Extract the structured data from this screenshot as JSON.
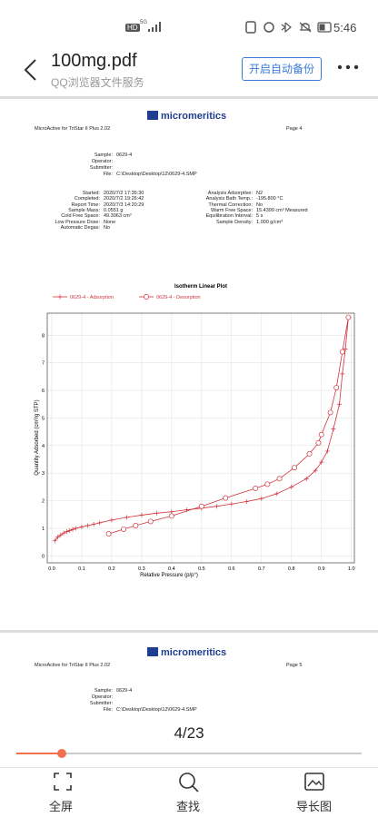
{
  "status_bar": {
    "network": "HD",
    "signal": "5G",
    "time": "5:46"
  },
  "header": {
    "title": "100mg.pdf",
    "subtitle": "QQ浏览器文件服务",
    "backup_button": "开启自动备份"
  },
  "page_1": {
    "software": "MicroActive for TriStar II Plus 2.02",
    "logo": "micromeritics",
    "page": "Page 4",
    "sample_rows": [
      {
        "label": "Sample:",
        "value": "0629-4"
      },
      {
        "label": "Operator:"
      },
      {
        "label": "Submitter:"
      },
      {
        "label": "File:",
        "value": "C:\\Desktop\\Desktop\\12\\0629-4.SMP"
      }
    ],
    "left_rows": [
      {
        "label": "Started:",
        "value": "2020/7/2 17:35:30"
      },
      {
        "label": "Completed:",
        "value": "2020/7/2 19:26:42"
      },
      {
        "label": "Report Time:",
        "value": "2020/7/3 14:20:29"
      },
      {
        "label": "Sample Mass:",
        "value": "0.0551 g"
      },
      {
        "label": "Cold Free Space:",
        "value": "49.3063 cm³"
      },
      {
        "label": "Low Pressure Dose:",
        "value": "None"
      },
      {
        "label": "Automatic Degas:",
        "value": "No"
      }
    ],
    "right_rows": [
      {
        "label": "Analysis Adsorptive:",
        "value": "N2"
      },
      {
        "label": "Analysis Bath Temp.:",
        "value": "-195.800 °C"
      },
      {
        "label": "Thermal Correction:",
        "value": "No"
      },
      {
        "label": "Warm Free Space:",
        "value": "15.4399 cm³ Measured"
      },
      {
        "label": "Equilibration Interval:",
        "value": "5 s"
      },
      {
        "label": "Sample Density:",
        "value": "1.000 g/cm³"
      }
    ]
  },
  "chart_data": {
    "type": "line",
    "title": "Isotherm Linear Plot",
    "x_label": "Relative Pressure (p/p°)",
    "y_label": "Quantity Adsorbed (cm³/g STP)",
    "xlim": [
      -0.015,
      1.01
    ],
    "ylim": [
      -0.25,
      8.8
    ],
    "xticks": [
      {
        "value": 0,
        "label": "0.0"
      },
      0.1,
      0.2,
      0.3,
      0.4,
      0.5,
      0.6,
      0.7,
      0.8,
      0.9,
      {
        "value": 1,
        "label": "1.0"
      }
    ],
    "yticks": [
      0,
      1,
      2,
      3,
      4,
      5,
      6,
      7,
      8
    ],
    "grid": true,
    "series": [
      {
        "name": "0629-4 - Adsorption",
        "color": "#d0343c",
        "marker": "plus",
        "x": [
          0.01,
          0.02,
          0.03,
          0.04,
          0.05,
          0.06,
          0.07,
          0.08,
          0.1,
          0.12,
          0.14,
          0.16,
          0.2,
          0.25,
          0.3,
          0.35,
          0.4,
          0.45,
          0.5,
          0.55,
          0.6,
          0.65,
          0.7,
          0.75,
          0.8,
          0.85,
          0.88,
          0.9,
          0.92,
          0.94,
          0.96,
          0.97,
          0.98,
          0.99
        ],
        "values": [
          0.55,
          0.68,
          0.76,
          0.83,
          0.88,
          0.92,
          0.96,
          1.0,
          1.05,
          1.1,
          1.15,
          1.2,
          1.3,
          1.4,
          1.48,
          1.55,
          1.6,
          1.67,
          1.73,
          1.8,
          1.88,
          1.97,
          2.08,
          2.25,
          2.5,
          2.8,
          3.1,
          3.4,
          3.8,
          4.6,
          5.5,
          6.6,
          7.5,
          8.65
        ]
      },
      {
        "name": "0629-4 - Desorption",
        "color": "#d0343c",
        "marker": "circle",
        "x": [
          0.99,
          0.97,
          0.95,
          0.93,
          0.9,
          0.89,
          0.86,
          0.81,
          0.76,
          0.72,
          0.68,
          0.58,
          0.5,
          0.4,
          0.33,
          0.28,
          0.24,
          0.19
        ],
        "values": [
          8.65,
          7.4,
          6.1,
          5.2,
          4.4,
          4.1,
          3.7,
          3.2,
          2.8,
          2.6,
          2.45,
          2.1,
          1.8,
          1.45,
          1.25,
          1.1,
          0.97,
          0.8
        ]
      }
    ]
  },
  "page_2": {
    "software": "MicroActive for TriStar II Plus 2.02",
    "logo": "micromeritics",
    "page": "Page 5",
    "sample_rows": [
      {
        "label": "Sample:",
        "value": "0629-4"
      },
      {
        "label": "Operator:"
      },
      {
        "label": "Submitter:"
      },
      {
        "label": "File:",
        "value": "C:\\Desktop\\Desktop\\12\\0629-4.SMP"
      }
    ]
  },
  "page_indicator": "4/23",
  "toolbar": [
    "全屏",
    "查找",
    "导长图"
  ]
}
